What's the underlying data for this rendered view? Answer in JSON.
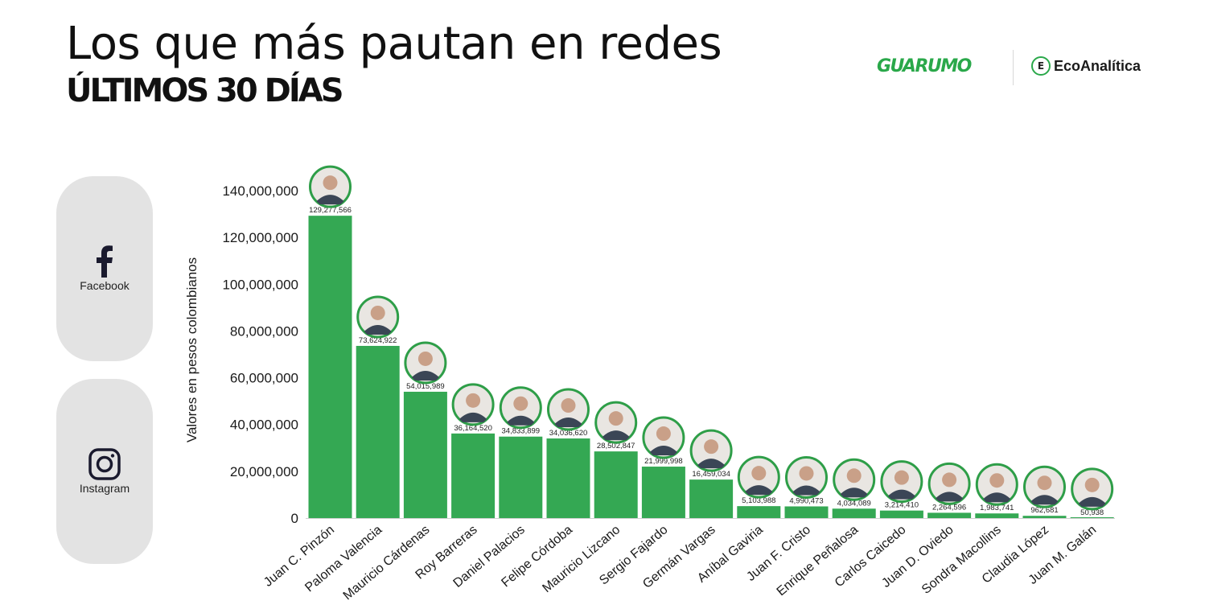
{
  "header": {
    "title": "Los que más pautan en redes",
    "subtitle": "ÚLTIMOS 30 DÍAS"
  },
  "logos": {
    "guarumo": "GUARUMO",
    "ecoanalitica": "EcoAnalítica"
  },
  "social": [
    {
      "label": "Facebook",
      "icon": "facebook-icon"
    },
    {
      "label": "Instagram",
      "icon": "instagram-icon"
    }
  ],
  "colors": {
    "bar": "#34a853",
    "avatar_ring": "#2e9e48",
    "card": "#e3e3e3",
    "text": "#1a1a1a"
  },
  "chart_data": {
    "type": "bar",
    "title": "Los que más pautan en redes",
    "subtitle": "ÚLTIMOS 30 DÍAS",
    "xlabel": "",
    "ylabel": "Valores en pesos colombianos",
    "ylim": [
      0,
      140000000
    ],
    "yticks": [
      0,
      20000000,
      40000000,
      60000000,
      80000000,
      100000000,
      120000000,
      140000000
    ],
    "ytick_labels": [
      "0",
      "20,000,000",
      "40,000,000",
      "60,000,000",
      "80,000,000",
      "100,000,000",
      "120,000,000",
      "140,000,000"
    ],
    "grid": false,
    "categories": [
      "Juan C. Pinzón",
      "Paloma Valencia",
      "Mauricio Cárdenas",
      "Roy Barreras",
      "Daniel Palacios",
      "Felipe Córdoba",
      "Mauricio Lizcano",
      "Sergio Fajardo",
      "Germán Vargas",
      "Aníbal Gaviria",
      "Juan F. Cristo",
      "Enrique Peñalosa",
      "Carlos Caicedo",
      "Juan D. Oviedo",
      "Sondra Macollins",
      "Claudia López",
      "Juan M. Galán"
    ],
    "values": [
      129277566,
      73624922,
      54015989,
      36164520,
      34833899,
      34036620,
      28502847,
      21999998,
      16459034,
      5103988,
      4990473,
      4034089,
      3214410,
      2264596,
      1983741,
      962681,
      50938
    ],
    "value_labels": [
      "129,277,566",
      "73,624,922",
      "54,015,989",
      "36,164,520",
      "34,833,899",
      "34,036,620",
      "28,502,847",
      "21,999,998",
      "16,459,034",
      "5,103,988",
      "4,990,473",
      "4,034,089",
      "3,214,410",
      "2,264,596",
      "1,983,741",
      "962,681",
      "50,938"
    ]
  }
}
